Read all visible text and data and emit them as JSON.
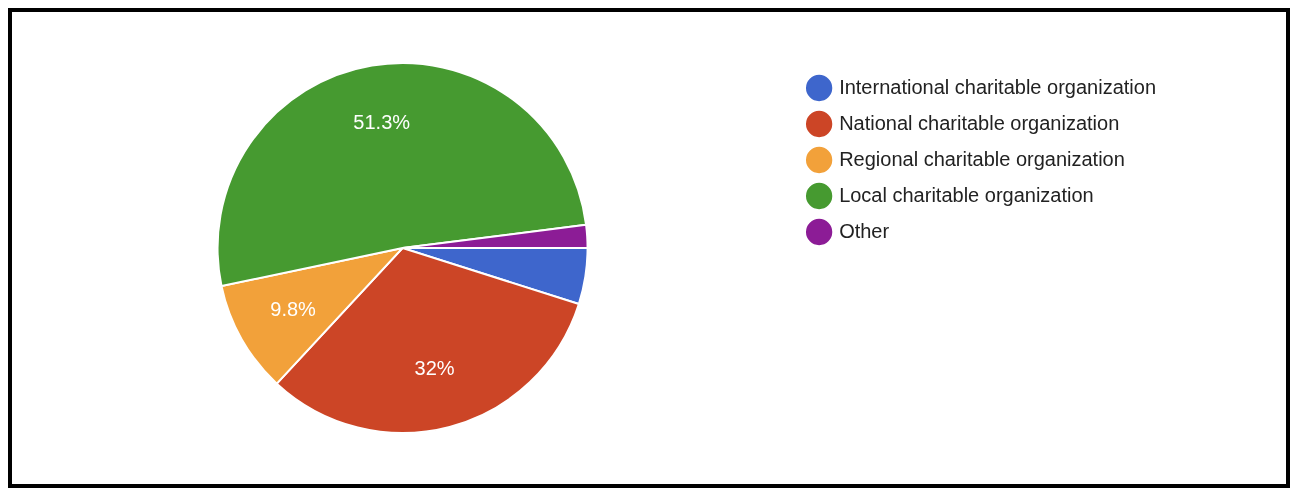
{
  "chart_data": {
    "type": "pie",
    "categories": [
      "International charitable organization",
      "National charitable organization",
      "Regional charitable organization",
      "Local charitable organization",
      "Other"
    ],
    "values": [
      4.9,
      32,
      9.8,
      51.3,
      2
    ],
    "colors": [
      "#3e66cc",
      "#cc4526",
      "#f2a13a",
      "#469a30",
      "#8c1c96"
    ],
    "value_labels": [
      null,
      "32%",
      "9.8%",
      "51.3%",
      null
    ],
    "legend": "right"
  }
}
